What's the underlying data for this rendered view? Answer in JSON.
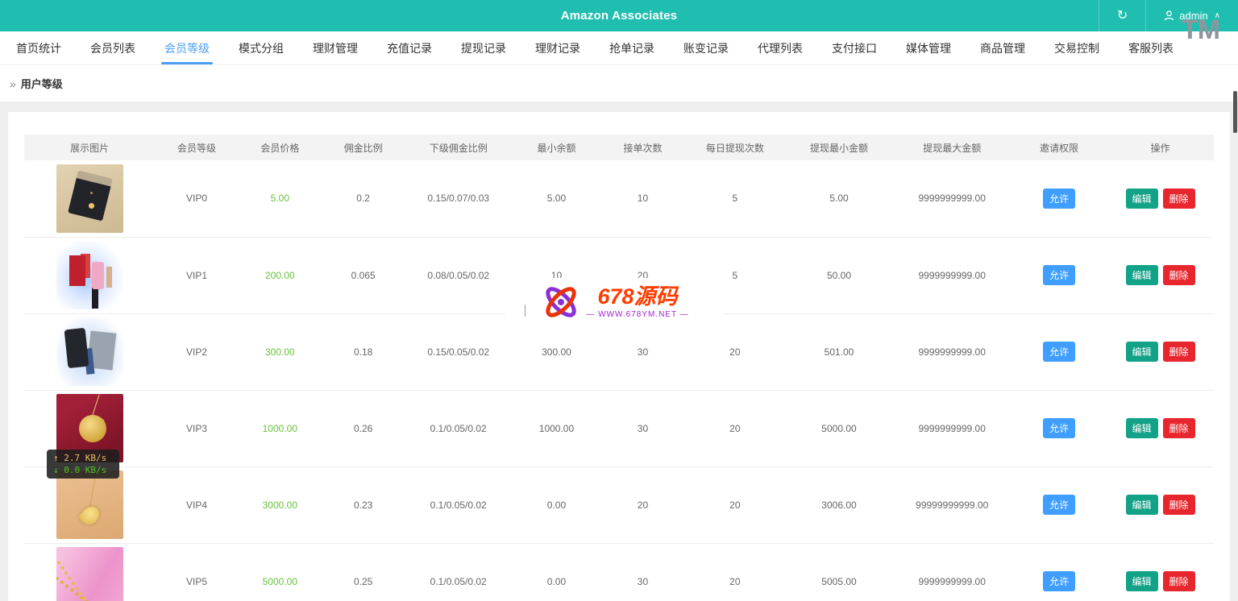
{
  "header": {
    "title": "Amazon Associates",
    "username": "admin",
    "colors": {
      "header_bg": "#20beb0",
      "active_tab": "#4a9ff5",
      "price_green": "#67c23a",
      "invite_btn": "#3f9eff",
      "edit_btn": "#12a287",
      "delete_btn": "#e8262d"
    }
  },
  "tabs": [
    {
      "label": "首页统计",
      "active": false
    },
    {
      "label": "会员列表",
      "active": false
    },
    {
      "label": "会员等级",
      "active": true
    },
    {
      "label": "模式分组",
      "active": false
    },
    {
      "label": "理财管理",
      "active": false
    },
    {
      "label": "充值记录",
      "active": false
    },
    {
      "label": "提现记录",
      "active": false
    },
    {
      "label": "理财记录",
      "active": false
    },
    {
      "label": "抢单记录",
      "active": false
    },
    {
      "label": "账变记录",
      "active": false
    },
    {
      "label": "代理列表",
      "active": false
    },
    {
      "label": "支付接口",
      "active": false
    },
    {
      "label": "媒体管理",
      "active": false
    },
    {
      "label": "商品管理",
      "active": false
    },
    {
      "label": "交易控制",
      "active": false
    },
    {
      "label": "客服列表",
      "active": false
    }
  ],
  "breadcrumb": {
    "arrows": "»",
    "label": "用户等级"
  },
  "table": {
    "columns": [
      "展示图片",
      "会员等级",
      "会员价格",
      "佣金比例",
      "下级佣金比例",
      "最小余额",
      "接单次数",
      "每日提现次数",
      "提现最小金额",
      "提现最大金额",
      "邀请权限",
      "操作"
    ],
    "rows": [
      {
        "image": "necklace-in-gift-box",
        "level": "VIP0",
        "price": "5.00",
        "commission": "0.2",
        "sub_commission": "0.15/0.07/0.03",
        "min_balance": "5.00",
        "order_count": "10",
        "daily_withdraw_count": "5",
        "min_withdraw": "5.00",
        "max_withdraw": "9999999999.00",
        "invite": "允许",
        "edit": "编辑",
        "delete": "删除"
      },
      {
        "image": "cosmetics-set",
        "level": "VIP1",
        "price": "200.00",
        "commission": "0.065",
        "sub_commission": "0.08/0.05/0.02",
        "min_balance": "10",
        "order_count": "20",
        "daily_withdraw_count": "5",
        "min_withdraw": "50.00",
        "max_withdraw": "9999999999.00",
        "invite": "允许",
        "edit": "编辑",
        "delete": "删除"
      },
      {
        "image": "phones-and-tablet",
        "level": "VIP2",
        "price": "300.00",
        "commission": "0.18",
        "sub_commission": "0.15/0.05/0.02",
        "min_balance": "300.00",
        "order_count": "30",
        "daily_withdraw_count": "20",
        "min_withdraw": "501.00",
        "max_withdraw": "9999999999.00",
        "invite": "允许",
        "edit": "编辑",
        "delete": "删除"
      },
      {
        "image": "gold-flower-pendant",
        "level": "VIP3",
        "price": "1000.00",
        "commission": "0.26",
        "sub_commission": "0.1/0.05/0.02",
        "min_balance": "1000.00",
        "order_count": "30",
        "daily_withdraw_count": "20",
        "min_withdraw": "5000.00",
        "max_withdraw": "9999999999.00",
        "invite": "允许",
        "edit": "编辑",
        "delete": "删除"
      },
      {
        "image": "gold-pendant",
        "level": "VIP4",
        "price": "3000.00",
        "commission": "0.23",
        "sub_commission": "0.1/0.05/0.02",
        "min_balance": "0.00",
        "order_count": "20",
        "daily_withdraw_count": "20",
        "min_withdraw": "3006.00",
        "max_withdraw": "99999999999.00",
        "invite": "允许",
        "edit": "编辑",
        "delete": "删除"
      },
      {
        "image": "gold-chain",
        "level": "VIP5",
        "price": "5000.00",
        "commission": "0.25",
        "sub_commission": "0.1/0.05/0.02",
        "min_balance": "0.00",
        "order_count": "30",
        "daily_withdraw_count": "20",
        "min_withdraw": "5005.00",
        "max_withdraw": "9999999999.00",
        "invite": "允许",
        "edit": "编辑",
        "delete": "删除"
      }
    ]
  },
  "watermarks": {
    "tm": "TM",
    "site_title": "678源码",
    "site_url": "— WWW.678YM.NET —"
  },
  "speed_overlay": {
    "up": "↑ 2.7 KB/s",
    "down": "↓ 0.0 KB/s"
  }
}
